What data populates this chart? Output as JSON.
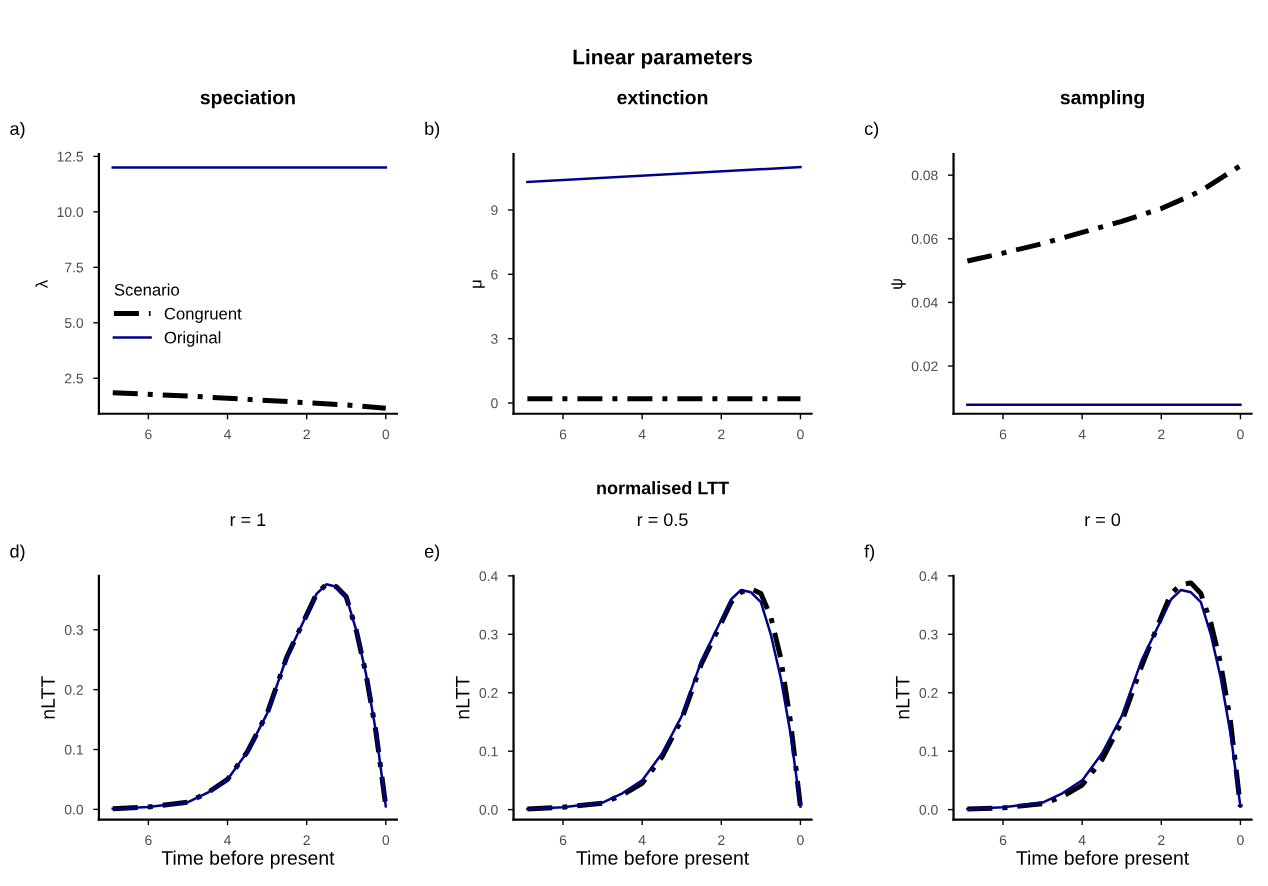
{
  "chart_data": [
    {
      "type": "line",
      "title": "speciation",
      "ylabel": "λ",
      "annotations": [
        "a)"
      ],
      "xlim": [
        7.25,
        -0.28
      ],
      "xticks": [
        6,
        4,
        2,
        0
      ],
      "ylim": [
        0.9,
        12.6
      ],
      "yticks": [
        {
          "value": 2.5,
          "label": "2.5"
        },
        {
          "value": 5,
          "label": "5.0"
        },
        {
          "value": 7.5,
          "label": "7.5"
        },
        {
          "value": 10,
          "label": "10.0"
        },
        {
          "value": 12.5,
          "label": "12.5"
        }
      ],
      "grid": false,
      "legend": "left",
      "legend_title": "Scenario",
      "marker": "none",
      "series": [
        {
          "name": "Congruent",
          "color": "#000000",
          "line_style": "dashed",
          "x": [
            6.9,
            5,
            4,
            3,
            2,
            1,
            0
          ],
          "values": [
            1.85,
            1.7,
            1.6,
            1.5,
            1.4,
            1.3,
            1.15
          ]
        },
        {
          "name": "Original",
          "color": "#00008b",
          "line_style": "solid",
          "x": [
            6.9,
            0
          ],
          "values": [
            12,
            12
          ]
        }
      ]
    },
    {
      "type": "line",
      "title": "extinction",
      "ylabel": "μ",
      "annotations": [
        "Linear parameters",
        "b)"
      ],
      "xlim": [
        7.25,
        -0.28
      ],
      "xticks": [
        6,
        4,
        2,
        0
      ],
      "ylim": [
        -0.5,
        11.6
      ],
      "yticks": [
        0,
        3,
        6,
        9
      ],
      "grid": false,
      "marker": "none",
      "series": [
        {
          "color": "#000000",
          "line_style": "dashed",
          "x": [
            6.9,
            0
          ],
          "values": [
            0.2,
            0.2
          ]
        },
        {
          "color": "#00008b",
          "line_style": "solid",
          "x": [
            6.9,
            0
          ],
          "values": [
            10.3,
            11.0
          ]
        }
      ]
    },
    {
      "type": "line",
      "title": "sampling",
      "ylabel": "ψ",
      "annotations": [
        "c)"
      ],
      "xlim": [
        7.25,
        -0.28
      ],
      "xticks": [
        6,
        4,
        2,
        0
      ],
      "ylim": [
        0.005,
        0.0866
      ],
      "yticks": [
        0.02,
        0.04,
        0.06,
        0.08
      ],
      "grid": false,
      "marker": "none",
      "series": [
        {
          "color": "#000000",
          "line_style": "dashed",
          "x": [
            6.9,
            6,
            5,
            4,
            3,
            2,
            1,
            0
          ],
          "values": [
            0.053,
            0.0555,
            0.0585,
            0.062,
            0.0655,
            0.0695,
            0.075,
            0.083
          ]
        },
        {
          "color": "#00008b",
          "line_style": "solid",
          "x": [
            6.9,
            0
          ],
          "values": [
            0.0078,
            0.0078
          ]
        }
      ]
    },
    {
      "type": "line",
      "title": "r = 1",
      "xlabel": "Time before present",
      "ylabel": "nLTT",
      "annotations": [
        "d)"
      ],
      "xlim": [
        7.25,
        -0.28
      ],
      "xticks": [
        6,
        4,
        2,
        0
      ],
      "ylim": [
        -0.017,
        0.39
      ],
      "yticks": [
        {
          "value": 0,
          "label": "0.0"
        },
        0.1,
        0.2,
        0.3
      ],
      "grid": false,
      "marker": "none",
      "series": [
        {
          "color": "#000000",
          "line_style": "dashed",
          "x": [
            6.9,
            6,
            5,
            4.5,
            4,
            3.5,
            3,
            2.5,
            2,
            1.75,
            1.5,
            1.25,
            1,
            0.75,
            0.5,
            0.25,
            0
          ],
          "values": [
            0.001,
            0.004,
            0.012,
            0.028,
            0.05,
            0.096,
            0.16,
            0.255,
            0.325,
            0.36,
            0.376,
            0.372,
            0.355,
            0.3,
            0.226,
            0.13,
            0.005
          ]
        },
        {
          "color": "#00008b",
          "line_style": "solid",
          "x": [
            6.9,
            6,
            5,
            4.5,
            4,
            3.5,
            3,
            2.5,
            2,
            1.75,
            1.5,
            1.25,
            1,
            0.75,
            0.5,
            0.25,
            0
          ],
          "values": [
            0.001,
            0.004,
            0.012,
            0.028,
            0.05,
            0.096,
            0.16,
            0.255,
            0.325,
            0.36,
            0.376,
            0.372,
            0.355,
            0.3,
            0.226,
            0.13,
            0.005
          ]
        }
      ]
    },
    {
      "type": "line",
      "title": "r = 0.5",
      "xlabel": "Time before present",
      "ylabel": "nLTT",
      "annotations": [
        "normalised LTT",
        "e)"
      ],
      "xlim": [
        7.25,
        -0.28
      ],
      "xticks": [
        6,
        4,
        2,
        0
      ],
      "ylim": [
        -0.017,
        0.4
      ],
      "yticks": [
        {
          "value": 0,
          "label": "0.0"
        },
        0.1,
        0.2,
        0.3,
        0.4
      ],
      "grid": false,
      "marker": "none",
      "series": [
        {
          "color": "#000000",
          "line_style": "dashed",
          "x": [
            6.9,
            6,
            5,
            4.5,
            4,
            3.5,
            3,
            2.5,
            2,
            1.75,
            1.5,
            1.25,
            1,
            0.75,
            0.5,
            0.25,
            0
          ],
          "values": [
            0.001,
            0.004,
            0.011,
            0.025,
            0.045,
            0.09,
            0.155,
            0.25,
            0.32,
            0.355,
            0.372,
            0.378,
            0.37,
            0.33,
            0.26,
            0.15,
            0.005
          ]
        },
        {
          "color": "#00008b",
          "line_style": "solid",
          "x": [
            6.9,
            6,
            5,
            4.5,
            4,
            3.5,
            3,
            2.5,
            2,
            1.75,
            1.5,
            1.25,
            1,
            0.75,
            0.5,
            0.25,
            0
          ],
          "values": [
            0.001,
            0.004,
            0.012,
            0.028,
            0.05,
            0.096,
            0.16,
            0.255,
            0.325,
            0.36,
            0.376,
            0.372,
            0.355,
            0.3,
            0.226,
            0.13,
            0.005
          ]
        }
      ]
    },
    {
      "type": "line",
      "title": "r = 0",
      "xlabel": "Time before present",
      "ylabel": "nLTT",
      "annotations": [
        "f)"
      ],
      "xlim": [
        7.25,
        -0.28
      ],
      "xticks": [
        6,
        4,
        2,
        0
      ],
      "ylim": [
        -0.017,
        0.4
      ],
      "yticks": [
        {
          "value": 0,
          "label": "0.0"
        },
        0.1,
        0.2,
        0.3,
        0.4
      ],
      "grid": false,
      "marker": "none",
      "series": [
        {
          "color": "#000000",
          "line_style": "dashed",
          "x": [
            6.9,
            6,
            5,
            4.5,
            4,
            3.5,
            3,
            2.5,
            2,
            1.75,
            1.5,
            1.25,
            1,
            0.75,
            0.5,
            0.25,
            0
          ],
          "values": [
            0.001,
            0.003,
            0.01,
            0.022,
            0.042,
            0.085,
            0.15,
            0.245,
            0.33,
            0.37,
            0.385,
            0.388,
            0.37,
            0.32,
            0.25,
            0.15,
            0.005
          ]
        },
        {
          "color": "#00008b",
          "line_style": "solid",
          "x": [
            6.9,
            6,
            5,
            4.5,
            4,
            3.5,
            3,
            2.5,
            2,
            1.75,
            1.5,
            1.25,
            1,
            0.75,
            0.5,
            0.25,
            0
          ],
          "values": [
            0.001,
            0.004,
            0.012,
            0.028,
            0.05,
            0.096,
            0.16,
            0.255,
            0.325,
            0.36,
            0.376,
            0.372,
            0.355,
            0.3,
            0.226,
            0.13,
            0.005
          ]
        }
      ]
    }
  ]
}
